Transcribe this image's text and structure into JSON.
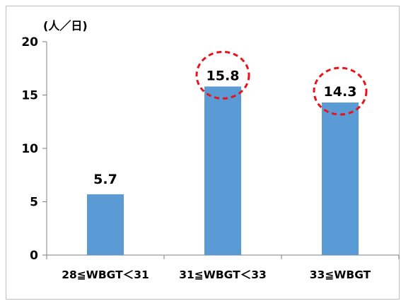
{
  "chart_data": {
    "type": "bar",
    "title": "",
    "ylabel": "(人／日)",
    "xlabel": "",
    "categories": [
      "28≦WBGT＜31",
      "31≦WBGT＜33",
      "33≦WBGT"
    ],
    "values": [
      5.7,
      15.8,
      14.3
    ],
    "data_labels": [
      "5.7",
      "15.8",
      "14.3"
    ],
    "ylim": [
      0,
      20
    ],
    "yticks": [
      0,
      5,
      10,
      15,
      20
    ],
    "grid": false,
    "legend": "none",
    "highlighted_categories": [
      "31≦WBGT＜33",
      "33≦WBGT"
    ],
    "colors": {
      "bar": "#5b9bd5",
      "highlight_circle": "#e8141c",
      "axis": "#7f7f7f"
    }
  }
}
